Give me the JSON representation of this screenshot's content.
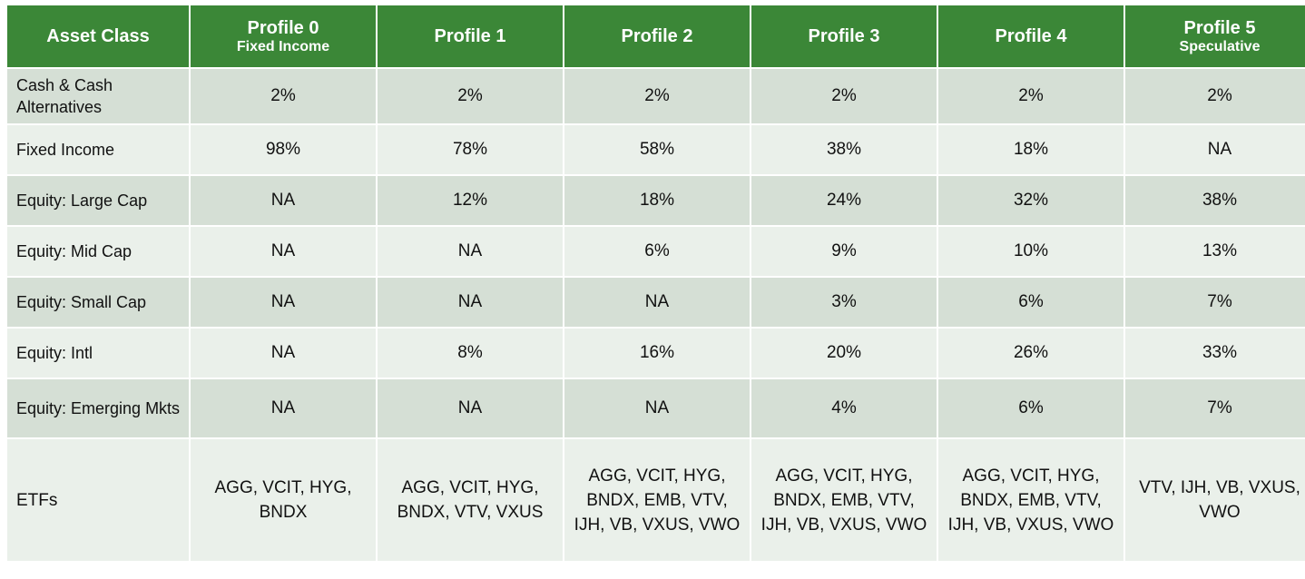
{
  "table": {
    "headers": [
      {
        "title": "Asset Class",
        "sub": ""
      },
      {
        "title": "Profile 0",
        "sub": "Fixed Income"
      },
      {
        "title": "Profile 1",
        "sub": ""
      },
      {
        "title": "Profile 2",
        "sub": ""
      },
      {
        "title": "Profile 3",
        "sub": ""
      },
      {
        "title": "Profile 4",
        "sub": ""
      },
      {
        "title": "Profile 5",
        "sub": "Speculative"
      }
    ],
    "rows": [
      {
        "label": "Cash & Cash Alternatives",
        "cells": [
          "2%",
          "2%",
          "2%",
          "2%",
          "2%",
          "2%"
        ]
      },
      {
        "label": "Fixed Income",
        "cells": [
          "98%",
          "78%",
          "58%",
          "38%",
          "18%",
          "NA"
        ]
      },
      {
        "label": "Equity: Large Cap",
        "cells": [
          "NA",
          "12%",
          "18%",
          "24%",
          "32%",
          "38%"
        ]
      },
      {
        "label": "Equity: Mid Cap",
        "cells": [
          "NA",
          "NA",
          "6%",
          "9%",
          "10%",
          "13%"
        ]
      },
      {
        "label": "Equity: Small Cap",
        "cells": [
          "NA",
          "NA",
          "NA",
          "3%",
          "6%",
          "7%"
        ]
      },
      {
        "label": "Equity: Intl",
        "cells": [
          "NA",
          "8%",
          "16%",
          "20%",
          "26%",
          "33%"
        ]
      },
      {
        "label": "Equity: Emerging Mkts",
        "cells": [
          "NA",
          "NA",
          "NA",
          "4%",
          "6%",
          "7%"
        ]
      },
      {
        "label": "ETFs",
        "cells": [
          "AGG, VCIT, HYG, BNDX",
          "AGG, VCIT, HYG, BNDX, VTV, VXUS",
          "AGG, VCIT, HYG, BNDX, EMB, VTV, IJH, VB, VXUS, VWO",
          "AGG, VCIT, HYG, BNDX, EMB, VTV, IJH, VB, VXUS, VWO",
          "AGG, VCIT, HYG, BNDX, EMB, VTV, IJH, VB, VXUS, VWO",
          "VTV, IJH, VB, VXUS, VWO"
        ]
      }
    ]
  },
  "colors": {
    "header_bg": "#3b8737",
    "row_dark": "#d5dfd5",
    "row_light": "#eaf0ea"
  }
}
